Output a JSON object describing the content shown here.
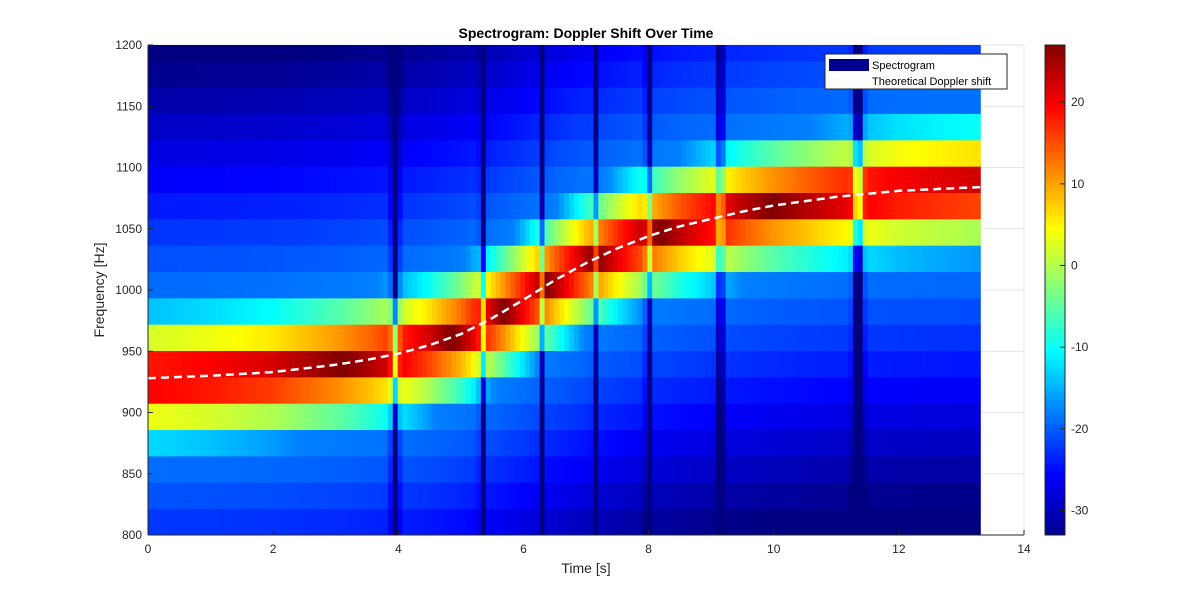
{
  "chart_data": {
    "type": "heatmap",
    "title": "Spectrogram: Doppler Shift Over Time",
    "xlabel": "Time [s]",
    "ylabel": "Frequency [Hz]",
    "xlim": [
      0,
      14
    ],
    "ylim": [
      800,
      1200
    ],
    "x_ticks": [
      0,
      2,
      4,
      6,
      8,
      10,
      12,
      14
    ],
    "y_ticks": [
      800,
      850,
      900,
      950,
      1000,
      1050,
      1100,
      1150,
      1200
    ],
    "data_extent": {
      "t_max": 13.3,
      "freq_bin_hz": 21.5
    },
    "colormap": "jet",
    "colorbar": {
      "clim": [
        -33,
        27
      ],
      "ticks": [
        20,
        10,
        0,
        -10,
        -20,
        -30
      ]
    },
    "spectrogram_model": {
      "peak_db": 27,
      "falloff_db_per_hz": 0.75,
      "floor_db": -18,
      "dip_times_s": [
        3.95,
        5.35,
        6.3,
        7.15,
        8.0,
        9.15,
        11.35
      ],
      "dip_depths_db": [
        18,
        14,
        12,
        12,
        14,
        14,
        20
      ],
      "dip_widths_s": [
        0.04,
        0.03,
        0.025,
        0.025,
        0.03,
        0.035,
        0.05
      ]
    },
    "series": [
      {
        "name": "Theoretical Doppler shift",
        "style": "dashed",
        "color": "#ffffff",
        "x": [
          0,
          1,
          2,
          3,
          3.5,
          4,
          4.5,
          5,
          5.5,
          6,
          6.5,
          7,
          7.5,
          8,
          8.5,
          9,
          9.5,
          10,
          11,
          12,
          13.3
        ],
        "y": [
          928,
          930,
          933,
          939,
          943,
          948,
          955,
          964,
          977,
          992,
          1008,
          1022,
          1034,
          1044,
          1052,
          1058,
          1064,
          1069,
          1076,
          1081,
          1084
        ]
      }
    ],
    "legend": {
      "position": "top-right",
      "entries": [
        {
          "label": "Spectrogram",
          "color": "#00008f"
        },
        {
          "label": "Theoretical Doppler shift",
          "color": "#ffffff"
        }
      ]
    }
  }
}
